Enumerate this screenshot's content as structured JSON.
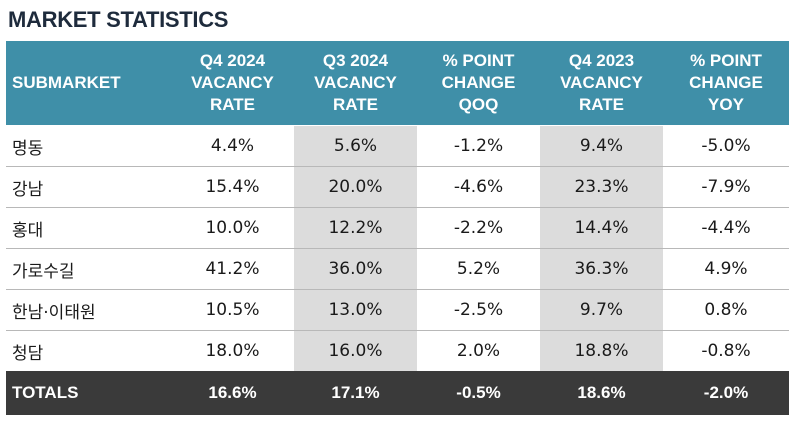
{
  "title": "MARKET STATISTICS",
  "header": {
    "submarket": "SUBMARKET",
    "columns": [
      [
        "Q4 2024",
        "VACANCY",
        "RATE"
      ],
      [
        "Q3 2024",
        "VACANCY",
        "RATE"
      ],
      [
        "% POINT",
        "CHANGE",
        "QOQ"
      ],
      [
        "Q4 2023",
        "VACANCY",
        "RATE"
      ],
      [
        "% POINT",
        "CHANGE",
        "YOY"
      ]
    ]
  },
  "rows": [
    [
      "명동",
      "4.4%",
      "5.6%",
      "-1.2%",
      "9.4%",
      "-5.0%"
    ],
    [
      "강남",
      "15.4%",
      "20.0%",
      "-4.6%",
      "23.3%",
      "-7.9%"
    ],
    [
      "홍대",
      "10.0%",
      "12.2%",
      "-2.2%",
      "14.4%",
      "-4.4%"
    ],
    [
      "가로수길",
      "41.2%",
      "36.0%",
      "5.2%",
      "36.3%",
      "4.9%"
    ],
    [
      "한남·이태원",
      "10.5%",
      "13.0%",
      "-2.5%",
      "9.7%",
      "0.8%"
    ],
    [
      "청담",
      "18.0%",
      "16.0%",
      "2.0%",
      "18.8%",
      "-0.8%"
    ]
  ],
  "totals": [
    "TOTALS",
    "16.6%",
    "17.1%",
    "-0.5%",
    "18.6%",
    "-2.0%"
  ],
  "colors": {
    "header_bg": "#3f8fa8",
    "shaded_column_bg": "#dcdcdc",
    "totals_bg": "#3a3a3a",
    "title_color": "#1e2b3c"
  }
}
